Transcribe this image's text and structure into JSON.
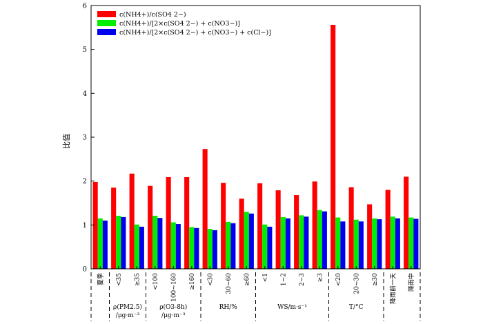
{
  "chart_data": {
    "type": "bar",
    "ylabel": "比值",
    "ylim": [
      0,
      6
    ],
    "yticks": [
      0,
      1,
      2,
      3,
      4,
      5,
      6
    ],
    "grid": false,
    "legend_position": "top-left",
    "categories": [
      "夏季",
      "<35",
      "≥35",
      "<100",
      "100~160",
      "≥160",
      "<30",
      "30~60",
      "≥60",
      "<1",
      "1~2",
      "2~3",
      "≥3",
      "<20",
      "20~30",
      "≥30",
      "降雨前一天",
      "降雨中"
    ],
    "groups": [
      {
        "label": "",
        "label2": "",
        "start": 0,
        "end": 0
      },
      {
        "label": "ρ(PM2.5)",
        "label2": "/μg·m⁻³",
        "start": 1,
        "end": 2
      },
      {
        "label": "ρ(O3-8h)",
        "label2": "/μg·m⁻³",
        "start": 3,
        "end": 5
      },
      {
        "label": "RH/%",
        "label2": "",
        "start": 6,
        "end": 8
      },
      {
        "label": "WS/m·s⁻¹",
        "label2": "",
        "start": 9,
        "end": 12
      },
      {
        "label": "T/°C",
        "label2": "",
        "start": 13,
        "end": 15
      },
      {
        "label": "",
        "label2": "",
        "start": 16,
        "end": 17
      }
    ],
    "series": [
      {
        "name": "c(NH4+)/c(SO4 2−)",
        "color": "#ff0000",
        "values": [
          1.98,
          1.85,
          2.17,
          1.89,
          2.09,
          2.09,
          2.73,
          1.96,
          1.6,
          1.95,
          1.79,
          1.68,
          1.99,
          5.56,
          1.86,
          1.47,
          1.8,
          2.1
        ]
      },
      {
        "name": "c(NH4+)/[2×c(SO4 2−) + c(NO3−)]",
        "color": "#00ee00",
        "values": [
          1.15,
          1.21,
          1.01,
          1.21,
          1.06,
          0.95,
          0.91,
          1.07,
          1.3,
          1.01,
          1.18,
          1.22,
          1.34,
          1.17,
          1.12,
          1.15,
          1.19,
          1.17
        ]
      },
      {
        "name": "c(NH4+)/[2×c(SO4 2−) + c(NO3−) + c(Cl−)]",
        "color": "#0000ee",
        "values": [
          1.1,
          1.18,
          0.96,
          1.16,
          1.02,
          0.93,
          0.88,
          1.04,
          1.26,
          0.96,
          1.15,
          1.19,
          1.31,
          1.08,
          1.08,
          1.13,
          1.15,
          1.14
        ]
      }
    ]
  }
}
